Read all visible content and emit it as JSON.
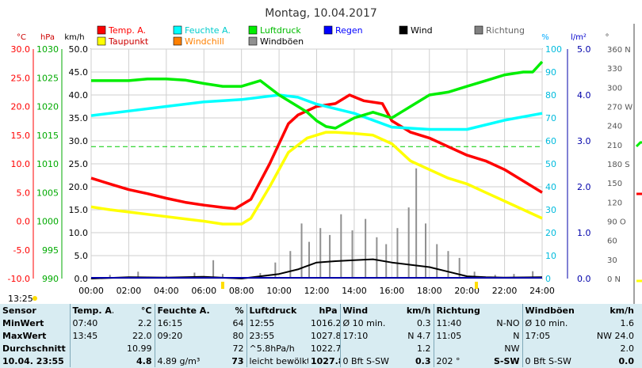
{
  "chart_data": {
    "type": "line",
    "title": "Montag, 10.04.2017",
    "x_ticks": [
      "00:00",
      "02:00",
      "04:00",
      "06:00",
      "08:00",
      "10:00",
      "12:00",
      "14:00",
      "16:00",
      "18:00",
      "20:00",
      "22:00",
      "24:00"
    ],
    "axes": {
      "temp_c": {
        "unit": "°C",
        "ticks": [
          "30.0",
          "25.0",
          "20.0",
          "15.0",
          "10.0",
          "5.0",
          "0.0",
          "-5.0",
          "-10.0"
        ],
        "range": [
          -10,
          30
        ]
      },
      "pressure_hpa": {
        "unit": "hPa",
        "ticks": [
          "1030",
          "1025",
          "1020",
          "1015",
          "1010",
          "1005",
          "1000",
          "995",
          "990"
        ],
        "range": [
          990,
          1030
        ]
      },
      "wind_kmh": {
        "unit": "km/h",
        "ticks": [
          "50.0",
          "45.0",
          "40.0",
          "35.0",
          "30.0",
          "25.0",
          "20.0",
          "15.0",
          "10.0",
          "5.0",
          "0.0"
        ],
        "range": [
          0,
          50
        ]
      },
      "humidity_pct": {
        "unit": "%",
        "ticks": [
          "100",
          "90",
          "80",
          "70",
          "60",
          "50",
          "40",
          "30",
          "20",
          "10",
          "0"
        ],
        "range": [
          0,
          100
        ]
      },
      "rain_lm2": {
        "unit": "l/m²",
        "ticks": [
          "5.0",
          "4.0",
          "3.0",
          "2.0",
          "1.0",
          "0.0"
        ],
        "range": [
          0,
          5
        ]
      },
      "direction": {
        "unit": "°",
        "ticks": [
          "360 N",
          "330",
          "300",
          "270 W",
          "240",
          "210",
          "180 S",
          "150",
          "120",
          "90 O",
          "60",
          "30",
          "0 N"
        ],
        "range": [
          0,
          360
        ]
      }
    },
    "legend": [
      {
        "name": "Temp. A.",
        "color": "#ff0000"
      },
      {
        "name": "Feuchte A.",
        "color": "#00ffff"
      },
      {
        "name": "Luftdruck",
        "color": "#00ee00"
      },
      {
        "name": "Regen",
        "color": "#0000ff"
      },
      {
        "name": "Wind",
        "color": "#000000"
      },
      {
        "name": "Richtung",
        "color": "#808080"
      },
      {
        "name": "Taupunkt",
        "color": "#ffff00"
      },
      {
        "name": "Windchill",
        "color": "#ff8000"
      },
      {
        "name": "Windböen",
        "color": "#909090"
      }
    ],
    "series": [
      {
        "name": "Temp. A.",
        "axis": "temp_c",
        "color": "#ff0000",
        "x": [
          0,
          1,
          2,
          3,
          4,
          5,
          6,
          7,
          7.67,
          8.5,
          9.5,
          10.5,
          11,
          12,
          13,
          13.75,
          14.5,
          15.5,
          16,
          17,
          18,
          19,
          20,
          21,
          22,
          23,
          24
        ],
        "values": [
          7.5,
          6.5,
          5.5,
          4.8,
          4.0,
          3.3,
          2.8,
          2.4,
          2.2,
          3.8,
          10.0,
          17.0,
          18.5,
          20.0,
          20.5,
          22.0,
          21.0,
          20.5,
          17.5,
          15.5,
          14.5,
          13.0,
          11.5,
          10.5,
          9.0,
          7.0,
          5.0
        ]
      },
      {
        "name": "Taupunkt",
        "axis": "temp_c",
        "color": "#ffff00",
        "x": [
          0,
          1,
          2,
          3,
          4,
          5,
          6,
          7,
          8,
          8.5,
          9.5,
          10.5,
          11.5,
          12.5,
          13,
          14,
          15,
          16,
          17,
          18,
          19,
          20,
          21,
          22,
          23,
          24
        ],
        "values": [
          2.5,
          2.0,
          1.6,
          1.2,
          0.8,
          0.4,
          0.0,
          -0.5,
          -0.5,
          0.5,
          6.0,
          12.0,
          14.5,
          15.5,
          15.5,
          15.3,
          15.0,
          13.5,
          10.5,
          9.0,
          7.5,
          6.5,
          5.0,
          3.5,
          2.0,
          0.5
        ]
      },
      {
        "name": "Feuchte A.",
        "axis": "humidity_pct",
        "color": "#00ffff",
        "x": [
          0,
          2,
          4,
          6,
          8,
          10,
          11,
          12,
          14,
          16,
          18,
          20,
          22,
          24
        ],
        "values": [
          71,
          73,
          75,
          77,
          78,
          80,
          79,
          76,
          72,
          66,
          65,
          65,
          69,
          72
        ]
      },
      {
        "name": "Luftdruck",
        "axis": "pressure_hpa",
        "color": "#00ee00",
        "x": [
          0,
          1,
          2,
          3,
          4,
          5,
          6,
          7,
          8,
          9,
          10,
          11,
          11.5,
          12,
          12.5,
          13,
          14,
          15,
          16,
          17,
          18,
          19,
          20,
          21,
          22,
          23,
          23.5,
          24
        ],
        "values": [
          1024.5,
          1024.5,
          1024.5,
          1024.8,
          1024.8,
          1024.6,
          1024.0,
          1023.5,
          1023.5,
          1024.5,
          1022.0,
          1020.0,
          1019.0,
          1017.5,
          1016.5,
          1016.2,
          1018.0,
          1019.0,
          1018.0,
          1020.0,
          1022.0,
          1022.5,
          1023.5,
          1024.5,
          1025.5,
          1026.0,
          1026.0,
          1027.8
        ]
      },
      {
        "name": "Wind",
        "axis": "wind_kmh",
        "color": "#000000",
        "x": [
          0,
          2,
          4,
          6,
          8,
          9,
          10,
          11,
          12,
          13,
          14,
          15,
          16,
          17,
          18,
          19,
          20,
          21,
          22,
          24
        ],
        "values": [
          0,
          0.3,
          0.2,
          0.4,
          0,
          0.5,
          1.0,
          2.0,
          3.5,
          3.8,
          4.0,
          4.2,
          3.5,
          3.0,
          2.5,
          1.5,
          0.5,
          0.3,
          0.2,
          0.3
        ]
      }
    ],
    "gust_bars": {
      "name": "Windböen",
      "axis": "wind_kmh",
      "color": "#909090",
      "x": [
        1,
        2.5,
        4,
        5.5,
        6.5,
        7,
        9,
        9.8,
        10.6,
        11.2,
        11.6,
        12.2,
        12.7,
        13.3,
        13.9,
        14.6,
        15.2,
        15.7,
        16.3,
        16.9,
        17.3,
        17.8,
        18.4,
        19.0,
        19.6,
        20.4,
        21.5,
        22.5,
        23.5
      ],
      "values": [
        0.8,
        1.5,
        0.6,
        1.3,
        4.0,
        1.0,
        1.2,
        3.5,
        6.0,
        12.0,
        8.0,
        11.0,
        9.5,
        14.0,
        10.5,
        13.0,
        9.0,
        7.5,
        11.0,
        15.5,
        24.0,
        12.0,
        7.5,
        6.0,
        4.5,
        1.5,
        0.8,
        1.0,
        1.6
      ]
    },
    "reference_line": {
      "axis": "temp_c",
      "value": 13.0,
      "color": "#00cc00"
    },
    "clock_left": "13:25"
  },
  "table": {
    "headers": [
      "Sensor",
      "Temp. A.",
      "°C",
      "Feuchte A.",
      "%",
      "Luftdruck",
      "hPa",
      "Wind",
      "km/h",
      "Richtung",
      "",
      "Windböen",
      "km/h"
    ],
    "rows": [
      {
        "label": "MinWert",
        "t_time": "07:40",
        "t_val": "2.2",
        "h_time": "16:15",
        "h_val": "64",
        "p_time": "12:55",
        "p_val": "1016.2",
        "w_time": "Ø 10 min.",
        "w_val": "0.3",
        "d_time": "11:40",
        "d_val": "N-NO",
        "g_time": "Ø 10 min.",
        "g_val": "1.6"
      },
      {
        "label": "MaxWert",
        "t_time": "13:45",
        "t_val": "22.0",
        "h_time": "09:20",
        "h_val": "80",
        "p_time": "23:55",
        "p_val": "1027.8",
        "w_time": "17:10",
        "w_val": "N 4.7",
        "d_time": "11:05",
        "d_val": "N",
        "g_time": "17:05",
        "g_val": "NW 24.0"
      },
      {
        "label": "Durchschnitt",
        "t_time": "",
        "t_val": "10.99",
        "h_time": "",
        "h_val": "72",
        "p_time": "^5.8hPa/h",
        "p_val": "1022.7",
        "w_time": "",
        "w_val": "1.2",
        "d_time": "",
        "d_val": "NW",
        "g_time": "",
        "g_val": "2.0"
      },
      {
        "label": "10.04. 23:55",
        "t_time": "",
        "t_val": "4.8",
        "h_time": "4.89 g/m³",
        "h_val": "73",
        "p_time": "leicht bewölkt",
        "p_val": "1027.8",
        "w_time": "0 Bft S-SW",
        "w_val": "0.3",
        "d_time": "202 °",
        "d_val": "S-SW",
        "g_time": "0 Bft S-SW",
        "g_val": "0.0"
      }
    ]
  }
}
